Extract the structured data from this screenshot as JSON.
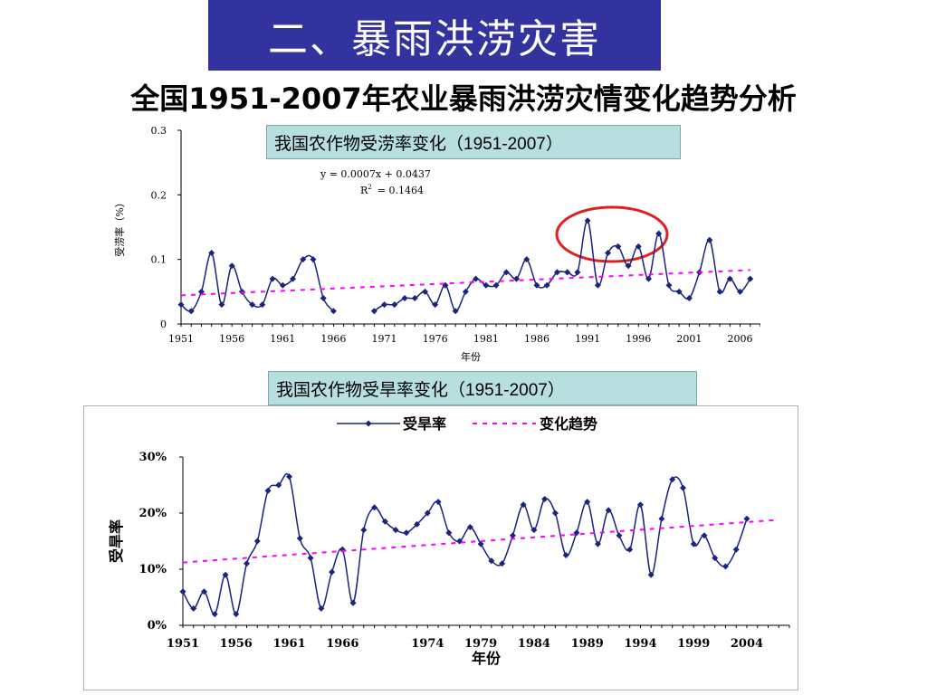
{
  "slide": {
    "title": "二、暴雨洪涝灾害",
    "subtitle": "全国1951-2007年农业暴雨洪涝灾情变化趋势分析",
    "flood_label": "我国农作物受涝率变化（1951-2007）",
    "drought_label": "我国农作物受旱率变化（1951-2007）"
  },
  "chart_data": [
    {
      "type": "line",
      "ylabel": "受涝率（%）",
      "xlabel": "年份",
      "xlim": [
        1951,
        2008
      ],
      "ylim": [
        0,
        0.3
      ],
      "yticks": [
        0,
        0.1,
        0.2,
        0.3
      ],
      "ytick_labels": [
        "0",
        "0.1",
        "0.2",
        "0.3"
      ],
      "xticks": [
        1951,
        1956,
        1961,
        1966,
        1971,
        1976,
        1981,
        1986,
        1991,
        1996,
        2001,
        2006
      ],
      "equation": "y = 0.0007x + 0.0437",
      "r2_label": "R",
      "r2_value": "= 0.1464",
      "series": [
        {
          "style": "solid",
          "color": "#1a237e",
          "x": [
            1951,
            1952,
            1953,
            1954,
            1955,
            1956,
            1957,
            1958,
            1959,
            1960,
            1961,
            1962,
            1963,
            1964,
            1965,
            1966,
            1967,
            null,
            1970,
            1971,
            1972,
            1973,
            1974,
            1975,
            1976,
            1977,
            1978,
            1979,
            1980,
            1981,
            1982,
            1983,
            1984,
            1985,
            1986,
            1987,
            1988,
            1989,
            1990,
            1991,
            1992,
            1993,
            1994,
            1995,
            1996,
            1997,
            1998,
            1999,
            2000,
            2001,
            2002,
            2003,
            2004,
            2005,
            2006,
            2007
          ],
          "y": [
            0.03,
            0.02,
            0.05,
            0.11,
            0.03,
            0.09,
            0.05,
            0.03,
            0.03,
            0.07,
            0.06,
            0.07,
            0.1,
            0.1,
            0.04,
            0.02,
            null,
            null,
            0.02,
            0.03,
            0.03,
            0.04,
            0.04,
            0.05,
            0.03,
            0.06,
            0.02,
            0.05,
            0.07,
            0.06,
            0.06,
            0.08,
            0.07,
            0.1,
            0.06,
            0.06,
            0.08,
            0.08,
            0.08,
            0.16,
            0.06,
            0.11,
            0.12,
            0.09,
            0.12,
            0.07,
            0.14,
            0.06,
            0.05,
            0.04,
            0.08,
            0.13,
            0.05,
            0.07,
            0.05,
            0.07
          ]
        },
        {
          "style": "trend",
          "color": "#ff00ff",
          "x": [
            1951,
            2007
          ],
          "y": [
            0.0444,
            0.0836
          ]
        }
      ],
      "annotation": {
        "type": "circle",
        "around_x": [
          1991,
          1999
        ],
        "color": "#e02020"
      }
    },
    {
      "type": "line",
      "ylabel": "受旱率",
      "xlabel": "年份",
      "xlim": [
        1951,
        2008
      ],
      "ylim": [
        0,
        0.3
      ],
      "yticks": [
        0,
        0.1,
        0.2,
        0.3
      ],
      "ytick_labels": [
        "0%",
        "10%",
        "20%",
        "30%"
      ],
      "xticks": [
        1951,
        1956,
        1961,
        1966,
        1974,
        1979,
        1984,
        1989,
        1994,
        1999,
        2004
      ],
      "legend": {
        "position": "top",
        "items": [
          {
            "name": "受旱率",
            "style": "solid"
          },
          {
            "name": "变化趋势",
            "style": "dashed"
          }
        ]
      },
      "series": [
        {
          "name": "受旱率",
          "style": "solid",
          "color": "#1a237e",
          "x": [
            1951,
            1952,
            1953,
            1954,
            1955,
            1956,
            1957,
            1958,
            1959,
            1960,
            1961,
            1962,
            1963,
            1964,
            1965,
            1966,
            1967,
            1968,
            1969,
            1970,
            1971,
            1972,
            1973,
            1974,
            1975,
            1976,
            1977,
            1978,
            1979,
            1980,
            1981,
            1982,
            1983,
            1984,
            1985,
            1986,
            1987,
            1988,
            1989,
            1990,
            1991,
            1992,
            1993,
            1994,
            1995,
            1996,
            1997,
            1998,
            1999,
            2000,
            2001,
            2002,
            2003,
            2004,
            2005,
            2006,
            2007
          ],
          "y": [
            0.06,
            0.03,
            0.06,
            0.02,
            0.09,
            0.02,
            0.11,
            0.15,
            0.24,
            0.25,
            0.265,
            0.155,
            0.12,
            0.03,
            0.095,
            0.135,
            0.04,
            0.17,
            0.21,
            0.185,
            0.17,
            0.165,
            0.18,
            0.2,
            0.22,
            0.165,
            0.15,
            0.175,
            0.145,
            0.115,
            0.11,
            0.16,
            0.215,
            0.17,
            0.225,
            0.2,
            0.125,
            0.165,
            0.22,
            0.145,
            0.205,
            0.16,
            0.135,
            0.215,
            0.09,
            0.19,
            0.26,
            0.245,
            0.145,
            0.16,
            0.12,
            0.105,
            0.135,
            0.19,
            null,
            null,
            null
          ]
        },
        {
          "name": "变化趋势",
          "style": "trend",
          "color": "#ff00ff",
          "x": [
            1951,
            2007
          ],
          "y": [
            0.112,
            0.188
          ]
        }
      ]
    }
  ]
}
